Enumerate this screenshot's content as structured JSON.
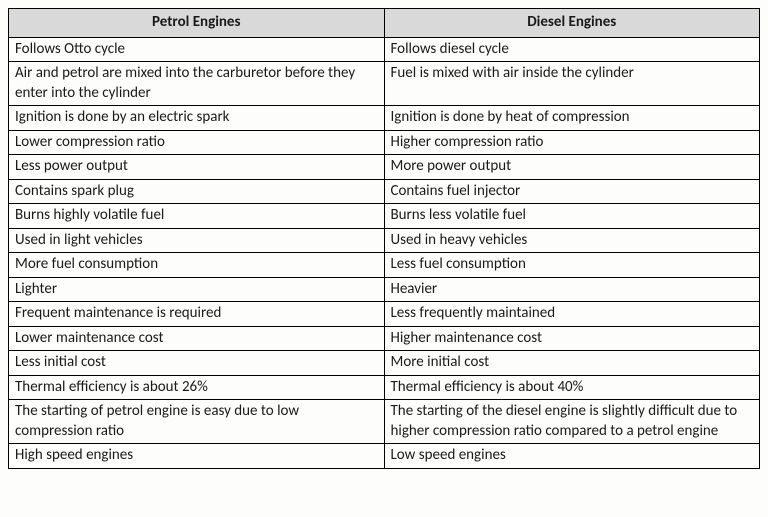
{
  "table": {
    "columns": [
      "Petrol Engines",
      "Diesel Engines"
    ],
    "rows": [
      [
        "Follows Otto cycle",
        "Follows diesel cycle"
      ],
      [
        "Air and petrol are mixed into the carburetor before they enter into the cylinder",
        "Fuel is mixed with air inside the cylinder"
      ],
      [
        "Ignition is done by an electric spark",
        "Ignition is done by heat of compression"
      ],
      [
        "Lower compression ratio",
        "Higher compression ratio"
      ],
      [
        "Less power output",
        "More power output"
      ],
      [
        "Contains spark plug",
        "Contains fuel injector"
      ],
      [
        "Burns highly volatile fuel",
        "Burns less volatile fuel"
      ],
      [
        "Used in light vehicles",
        "Used in heavy vehicles"
      ],
      [
        "More fuel consumption",
        "Less fuel consumption"
      ],
      [
        "Lighter",
        "Heavier"
      ],
      [
        "Frequent maintenance is required",
        "Less frequently maintained"
      ],
      [
        "Lower maintenance cost",
        "Higher maintenance cost"
      ],
      [
        "Less initial cost",
        "More initial cost"
      ],
      [
        "Thermal efficiency is about 26%",
        "Thermal efficiency is about 40%"
      ],
      [
        "The starting of petrol engine is easy due to low compression ratio",
        "The starting of the diesel engine is slightly difficult due to higher compression ratio compared to a petrol engine"
      ],
      [
        "High speed engines",
        "Low speed engines"
      ]
    ],
    "header_bg": "#d9d9d9",
    "border_color": "#000000",
    "bg_color": "#fdfdfb",
    "font_family": "Calibri",
    "header_fontsize": 15,
    "cell_fontsize": 15
  }
}
